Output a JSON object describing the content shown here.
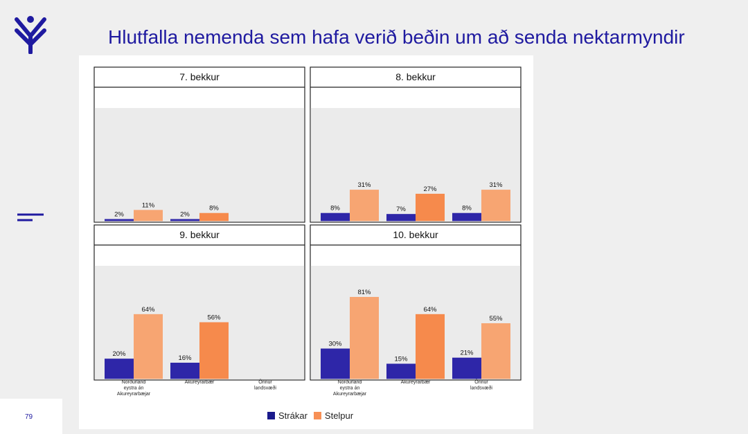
{
  "page_number": "79",
  "title": "Hlutfalla nemenda sem hafa verið beðin um að senda nektarmyndir",
  "colors": {
    "strakar": "#2e26a8",
    "stelpur_light": "#f7a572",
    "stelpur_dark": "#f68a4c",
    "brand": "#1f1aa0"
  },
  "legend": [
    {
      "label": "Strákar",
      "color": "#1a1a8c"
    },
    {
      "label": "Stelpur",
      "color": "#f79056"
    }
  ],
  "chart_data": {
    "type": "bar",
    "ylim": [
      0,
      100
    ],
    "categories": [
      "Norðurland eystra án Akureyrarbæjar",
      "Akureyrarbær",
      "Önnur landsvæði"
    ],
    "panels": [
      {
        "title": "7. bekkur",
        "series": [
          {
            "name": "Strákar",
            "values": [
              2,
              2,
              null
            ],
            "labels": [
              "2%",
              "2%",
              null
            ]
          },
          {
            "name": "Stelpur",
            "values": [
              11,
              8,
              null
            ],
            "labels": [
              "11%",
              "8%",
              null
            ]
          }
        ]
      },
      {
        "title": "8. bekkur",
        "series": [
          {
            "name": "Strákar",
            "values": [
              8,
              7,
              8
            ],
            "labels": [
              "8%",
              "7%",
              "8%"
            ]
          },
          {
            "name": "Stelpur",
            "values": [
              31,
              27,
              31
            ],
            "labels": [
              "31%",
              "27%",
              "31%"
            ]
          }
        ]
      },
      {
        "title": "9. bekkur",
        "series": [
          {
            "name": "Strákar",
            "values": [
              20,
              16,
              null
            ],
            "labels": [
              "20%",
              "16%",
              null
            ]
          },
          {
            "name": "Stelpur",
            "values": [
              64,
              56,
              null
            ],
            "labels": [
              "64%",
              "56%",
              null
            ]
          }
        ]
      },
      {
        "title": "10. bekkur",
        "series": [
          {
            "name": "Strákar",
            "values": [
              30,
              15,
              21
            ],
            "labels": [
              "30%",
              "15%",
              "21%"
            ]
          },
          {
            "name": "Stelpur",
            "values": [
              81,
              64,
              55
            ],
            "labels": [
              "81%",
              "64%",
              "55%"
            ]
          }
        ]
      }
    ],
    "x_tick_lines": [
      [
        "Norðurland",
        "eystra án",
        "Akureyrarbæjar"
      ],
      [
        "Akureyrarbær"
      ],
      [
        "Önnur",
        "landsvæði"
      ]
    ]
  }
}
